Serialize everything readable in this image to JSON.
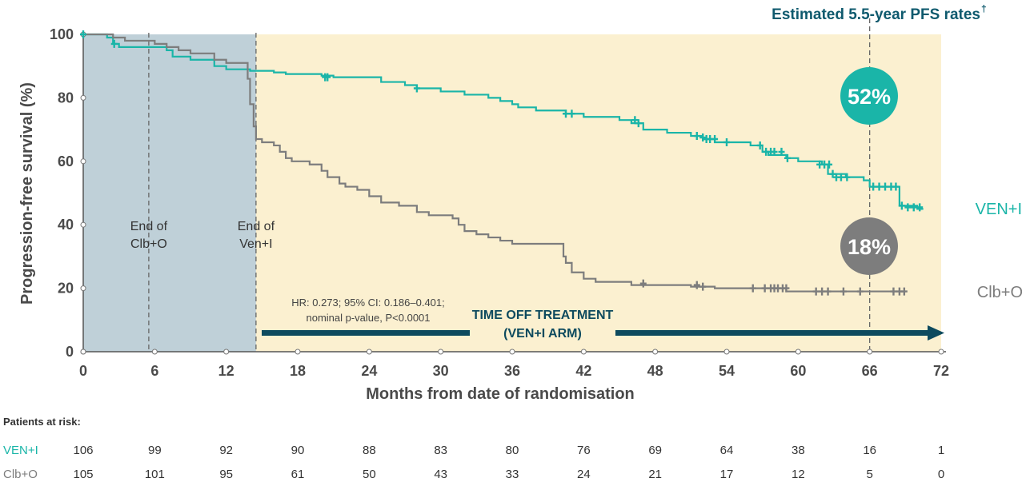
{
  "chart_data": {
    "type": "line",
    "subtitle": "Estimated 5.5-year PFS rates",
    "subtitle_mark": "†",
    "xlabel": "Months from date of randomisation",
    "ylabel": "Progression-free survival (%)",
    "xlim": [
      0,
      72
    ],
    "ylim": [
      0,
      100
    ],
    "xticks": [
      0,
      6,
      12,
      18,
      24,
      30,
      36,
      42,
      48,
      54,
      60,
      66,
      72
    ],
    "yticks": [
      0,
      20,
      40,
      60,
      80,
      100
    ],
    "shaded_regions": [
      {
        "from": 0,
        "to": 14.5,
        "color": "#bfd0d8"
      },
      {
        "from": 14.5,
        "to": 72,
        "color": "#fbf0d0"
      }
    ],
    "vlines": [
      {
        "x": 5.5,
        "label_lines": [
          "End of",
          "Clb+O"
        ]
      },
      {
        "x": 14.5,
        "label_lines": [
          "End of",
          "Ven+I"
        ]
      },
      {
        "x": 66,
        "label_lines": []
      }
    ],
    "series": [
      {
        "name": "VEN+I",
        "color": "#1ab5a8",
        "rate_label": "52%",
        "steps": [
          [
            0,
            100
          ],
          [
            2,
            99
          ],
          [
            2.5,
            97
          ],
          [
            3,
            96
          ],
          [
            5.5,
            96
          ],
          [
            7,
            95
          ],
          [
            7.5,
            93
          ],
          [
            9,
            92
          ],
          [
            11,
            90
          ],
          [
            12,
            89
          ],
          [
            14,
            88.5
          ],
          [
            16,
            88
          ],
          [
            17,
            87.5
          ],
          [
            20,
            87
          ],
          [
            21,
            86.5
          ],
          [
            25,
            85
          ],
          [
            27,
            84
          ],
          [
            28,
            83
          ],
          [
            30,
            82
          ],
          [
            32,
            81
          ],
          [
            34,
            80
          ],
          [
            35,
            79
          ],
          [
            36,
            78
          ],
          [
            36.5,
            77
          ],
          [
            38,
            76
          ],
          [
            40.5,
            75
          ],
          [
            42,
            74
          ],
          [
            45,
            73
          ],
          [
            46,
            72
          ],
          [
            47,
            70
          ],
          [
            49,
            69
          ],
          [
            51,
            68
          ],
          [
            52,
            67
          ],
          [
            53,
            66
          ],
          [
            54,
            66
          ],
          [
            56,
            65
          ],
          [
            57,
            63
          ],
          [
            57.5,
            62
          ],
          [
            59,
            61
          ],
          [
            60,
            60
          ],
          [
            61,
            60
          ],
          [
            62,
            59
          ],
          [
            62.5,
            56
          ],
          [
            64,
            55
          ],
          [
            65,
            55
          ],
          [
            65.5,
            54
          ],
          [
            66,
            52
          ],
          [
            68,
            52
          ],
          [
            68.5,
            46
          ],
          [
            70,
            45
          ],
          [
            70.5,
            45
          ]
        ],
        "censors": [
          [
            0,
            100
          ],
          [
            2.6,
            97
          ],
          [
            20.3,
            86.5
          ],
          [
            20.5,
            86.5
          ],
          [
            28,
            83
          ],
          [
            40.5,
            75
          ],
          [
            41,
            75
          ],
          [
            46.3,
            73
          ],
          [
            46.6,
            72
          ],
          [
            51.5,
            68
          ],
          [
            52,
            67.5
          ],
          [
            52.3,
            67
          ],
          [
            52.6,
            67
          ],
          [
            53,
            67
          ],
          [
            54,
            66
          ],
          [
            56.8,
            65
          ],
          [
            57.3,
            63
          ],
          [
            57.7,
            63
          ],
          [
            58,
            63
          ],
          [
            58.6,
            63
          ],
          [
            59.1,
            61
          ],
          [
            61.8,
            59
          ],
          [
            62.2,
            59
          ],
          [
            62.6,
            59
          ],
          [
            62.9,
            56
          ],
          [
            63.2,
            55
          ],
          [
            63.6,
            55
          ],
          [
            64.1,
            55
          ],
          [
            66.3,
            52
          ],
          [
            66.8,
            52
          ],
          [
            67.3,
            52
          ],
          [
            67.8,
            52
          ],
          [
            68.2,
            52
          ],
          [
            68.7,
            46
          ],
          [
            69.2,
            45.5
          ],
          [
            69.7,
            45.5
          ],
          [
            70.2,
            45.5
          ]
        ]
      },
      {
        "name": "Clb+O",
        "color": "#7d7d7d",
        "rate_label": "18%",
        "steps": [
          [
            0,
            100
          ],
          [
            2.5,
            99
          ],
          [
            3.5,
            98
          ],
          [
            6,
            97
          ],
          [
            7,
            96
          ],
          [
            8,
            95
          ],
          [
            9,
            94
          ],
          [
            11,
            92
          ],
          [
            12,
            91
          ],
          [
            13.5,
            91
          ],
          [
            13.8,
            86
          ],
          [
            14,
            78
          ],
          [
            14.3,
            71
          ],
          [
            14.5,
            67
          ],
          [
            15,
            66
          ],
          [
            16,
            65
          ],
          [
            16.5,
            63
          ],
          [
            17,
            61
          ],
          [
            17.5,
            60
          ],
          [
            19,
            59
          ],
          [
            20,
            57
          ],
          [
            20.5,
            55
          ],
          [
            21.5,
            53
          ],
          [
            22,
            52
          ],
          [
            23,
            51
          ],
          [
            24,
            49
          ],
          [
            25,
            47
          ],
          [
            26.5,
            46
          ],
          [
            28,
            44
          ],
          [
            29,
            43
          ],
          [
            31,
            42
          ],
          [
            31.5,
            40
          ],
          [
            32,
            38
          ],
          [
            33,
            37
          ],
          [
            34,
            36
          ],
          [
            35,
            35
          ],
          [
            36,
            34
          ],
          [
            40,
            34
          ],
          [
            40.3,
            30
          ],
          [
            40.5,
            28
          ],
          [
            41,
            25
          ],
          [
            42,
            23
          ],
          [
            43,
            22
          ],
          [
            46,
            21
          ],
          [
            51,
            20.5
          ],
          [
            53,
            20
          ],
          [
            57,
            20
          ],
          [
            59,
            19
          ],
          [
            66,
            19
          ],
          [
            69,
            19
          ]
        ],
        "censors": [
          [
            47,
            21.5
          ],
          [
            51.5,
            21
          ],
          [
            52,
            20.5
          ],
          [
            56.2,
            20
          ],
          [
            57.2,
            20
          ],
          [
            57.7,
            20
          ],
          [
            58,
            20
          ],
          [
            58.3,
            20
          ],
          [
            58.7,
            20
          ],
          [
            59,
            20
          ],
          [
            61.5,
            19
          ],
          [
            62,
            19
          ],
          [
            62.5,
            19
          ],
          [
            63.8,
            19
          ],
          [
            65.2,
            19
          ],
          [
            68,
            19
          ],
          [
            68.5,
            19
          ],
          [
            68.9,
            19
          ]
        ]
      }
    ],
    "annotation": {
      "stats_line1": "HR: 0.273; 95% CI: 0.186–0.401;",
      "stats_line2": "nominal p-value, P<0.0001",
      "arrow_label_line1": "TIME OFF TREATMENT",
      "arrow_label_line2": "(VEN+I ARM)",
      "arrow_color": "#0d4a5e"
    }
  },
  "at_risk": {
    "title": "Patients at risk:",
    "rows": [
      {
        "name": "VEN+I",
        "color": "#1ab5a8",
        "values": [
          "106",
          "99",
          "92",
          "90",
          "88",
          "83",
          "80",
          "76",
          "69",
          "64",
          "38",
          "16",
          "1"
        ]
      },
      {
        "name": "Clb+O",
        "color": "#7d7d7d",
        "values": [
          "105",
          "101",
          "95",
          "61",
          "50",
          "43",
          "33",
          "24",
          "21",
          "17",
          "12",
          "5",
          "0"
        ]
      }
    ]
  }
}
